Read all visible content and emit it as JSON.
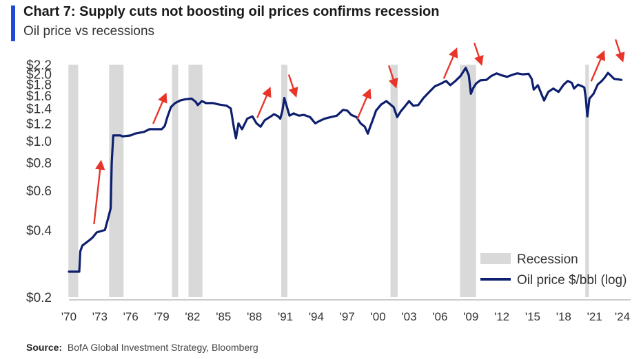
{
  "title": "Chart 7: Supply cuts not boosting oil prices confirms recession",
  "subtitle": "Oil price vs recessions",
  "source": {
    "label": "Source:",
    "text": "BofA Global Investment Strategy, Bloomberg"
  },
  "colors": {
    "accent": "#1f4bd8",
    "line": "#0d1f6e",
    "recession": "#d9d9d9",
    "arrow": "#e8352a"
  },
  "chart_data": {
    "type": "line",
    "title": "Chart 7: Supply cuts not boosting oil prices confirms recession",
    "subtitle": "Oil price vs recessions",
    "xlabel": "",
    "ylabel": "",
    "y_scale": "log10 of oil price $/bbl",
    "xlim": [
      1970,
      2024.5
    ],
    "ylim": [
      0.2,
      2.2
    ],
    "y_ticks": [
      "$0.2",
      "$0.4",
      "$0.6",
      "$0.8",
      "$1.0",
      "$1.2",
      "$1.4",
      "$1.6",
      "$1.8",
      "$2.0",
      "$2.2"
    ],
    "y_tick_values": [
      0.2,
      0.4,
      0.6,
      0.8,
      1.0,
      1.2,
      1.4,
      1.6,
      1.8,
      2.0,
      2.2
    ],
    "x_ticks": [
      "'70",
      "'73",
      "'76",
      "'79",
      "'82",
      "'85",
      "'88",
      "'91",
      "'94",
      "'97",
      "'00",
      "'03",
      "'06",
      "'09",
      "'12",
      "'15",
      "'18",
      "'21",
      "'24"
    ],
    "x_tick_values": [
      1970,
      1973,
      1976,
      1979,
      1982,
      1985,
      1988,
      1991,
      1994,
      1997,
      2000,
      2003,
      2006,
      2009,
      2012,
      2015,
      2018,
      2021,
      2024
    ],
    "grid": false,
    "legend": {
      "position": "bottom-right",
      "items": [
        {
          "label": "Recession",
          "kind": "band"
        },
        {
          "label": "Oil price $/bbl (log)",
          "kind": "line"
        }
      ]
    },
    "recessions": [
      [
        1969.95,
        1970.9
      ],
      [
        1973.9,
        1975.3
      ],
      [
        1980.0,
        1980.6
      ],
      [
        1981.6,
        1982.95
      ],
      [
        1990.6,
        1991.2
      ],
      [
        2001.2,
        2001.9
      ],
      [
        2007.95,
        2009.5
      ],
      [
        2020.1,
        2020.45
      ]
    ],
    "series": [
      {
        "name": "Oil price $/bbl (log)",
        "points": [
          [
            1970.0,
            0.26
          ],
          [
            1971.0,
            0.26
          ],
          [
            1971.1,
            0.32
          ],
          [
            1971.3,
            0.34
          ],
          [
            1972.0,
            0.36
          ],
          [
            1972.3,
            0.37
          ],
          [
            1972.7,
            0.39
          ],
          [
            1973.5,
            0.4
          ],
          [
            1973.8,
            0.45
          ],
          [
            1974.05,
            0.5
          ],
          [
            1974.15,
            0.8
          ],
          [
            1974.3,
            1.06
          ],
          [
            1975.0,
            1.06
          ],
          [
            1975.2,
            1.05
          ],
          [
            1976.0,
            1.06
          ],
          [
            1976.4,
            1.08
          ],
          [
            1977.3,
            1.1
          ],
          [
            1977.8,
            1.13
          ],
          [
            1978.6,
            1.13
          ],
          [
            1979.0,
            1.13
          ],
          [
            1979.3,
            1.17
          ],
          [
            1979.55,
            1.28
          ],
          [
            1979.9,
            1.42
          ],
          [
            1980.3,
            1.48
          ],
          [
            1980.8,
            1.52
          ],
          [
            1981.3,
            1.54
          ],
          [
            1981.9,
            1.55
          ],
          [
            1982.3,
            1.5
          ],
          [
            1982.5,
            1.45
          ],
          [
            1982.9,
            1.51
          ],
          [
            1983.3,
            1.48
          ],
          [
            1984.0,
            1.48
          ],
          [
            1984.5,
            1.46
          ],
          [
            1985.3,
            1.44
          ],
          [
            1985.7,
            1.4
          ],
          [
            1986.0,
            1.15
          ],
          [
            1986.2,
            1.03
          ],
          [
            1986.45,
            1.2
          ],
          [
            1986.8,
            1.13
          ],
          [
            1987.3,
            1.26
          ],
          [
            1987.8,
            1.29
          ],
          [
            1988.2,
            1.2
          ],
          [
            1988.6,
            1.16
          ],
          [
            1989.0,
            1.24
          ],
          [
            1989.6,
            1.29
          ],
          [
            1989.9,
            1.32
          ],
          [
            1990.3,
            1.29
          ],
          [
            1990.5,
            1.26
          ],
          [
            1990.7,
            1.36
          ],
          [
            1990.9,
            1.56
          ],
          [
            1991.1,
            1.45
          ],
          [
            1991.4,
            1.3
          ],
          [
            1991.8,
            1.33
          ],
          [
            1992.3,
            1.3
          ],
          [
            1992.8,
            1.31
          ],
          [
            1993.4,
            1.28
          ],
          [
            1993.9,
            1.2
          ],
          [
            1994.3,
            1.23
          ],
          [
            1994.8,
            1.26
          ],
          [
            1995.4,
            1.28
          ],
          [
            1996.0,
            1.3
          ],
          [
            1996.6,
            1.38
          ],
          [
            1997.0,
            1.37
          ],
          [
            1997.4,
            1.31
          ],
          [
            1997.9,
            1.28
          ],
          [
            1998.3,
            1.2
          ],
          [
            1998.7,
            1.16
          ],
          [
            1999.0,
            1.08
          ],
          [
            1999.2,
            1.15
          ],
          [
            1999.5,
            1.25
          ],
          [
            1999.8,
            1.37
          ],
          [
            2000.3,
            1.46
          ],
          [
            2000.8,
            1.51
          ],
          [
            2001.1,
            1.47
          ],
          [
            2001.5,
            1.42
          ],
          [
            2001.85,
            1.28
          ],
          [
            2002.2,
            1.36
          ],
          [
            2002.6,
            1.43
          ],
          [
            2003.0,
            1.51
          ],
          [
            2003.4,
            1.44
          ],
          [
            2003.9,
            1.45
          ],
          [
            2004.4,
            1.56
          ],
          [
            2004.9,
            1.65
          ],
          [
            2005.5,
            1.76
          ],
          [
            2006.0,
            1.8
          ],
          [
            2006.6,
            1.86
          ],
          [
            2007.0,
            1.78
          ],
          [
            2007.5,
            1.86
          ],
          [
            2008.0,
            1.96
          ],
          [
            2008.5,
            2.13
          ],
          [
            2008.8,
            1.97
          ],
          [
            2009.0,
            1.63
          ],
          [
            2009.2,
            1.72
          ],
          [
            2009.5,
            1.81
          ],
          [
            2009.9,
            1.87
          ],
          [
            2010.5,
            1.88
          ],
          [
            2011.0,
            1.96
          ],
          [
            2011.5,
            2.01
          ],
          [
            2012.0,
            1.97
          ],
          [
            2012.5,
            1.94
          ],
          [
            2013.0,
            1.98
          ],
          [
            2013.5,
            2.01
          ],
          [
            2014.0,
            1.99
          ],
          [
            2014.6,
            2.0
          ],
          [
            2014.9,
            1.9
          ],
          [
            2015.1,
            1.7
          ],
          [
            2015.5,
            1.78
          ],
          [
            2015.9,
            1.6
          ],
          [
            2016.1,
            1.52
          ],
          [
            2016.5,
            1.66
          ],
          [
            2017.0,
            1.72
          ],
          [
            2017.5,
            1.66
          ],
          [
            2018.0,
            1.79
          ],
          [
            2018.4,
            1.86
          ],
          [
            2018.8,
            1.82
          ],
          [
            2019.0,
            1.72
          ],
          [
            2019.4,
            1.79
          ],
          [
            2019.8,
            1.76
          ],
          [
            2020.0,
            1.74
          ],
          [
            2020.15,
            1.56
          ],
          [
            2020.3,
            1.29
          ],
          [
            2020.5,
            1.55
          ],
          [
            2020.9,
            1.63
          ],
          [
            2021.3,
            1.79
          ],
          [
            2021.7,
            1.86
          ],
          [
            2022.0,
            1.93
          ],
          [
            2022.3,
            2.02
          ],
          [
            2022.6,
            1.96
          ],
          [
            2022.9,
            1.9
          ],
          [
            2023.3,
            1.89
          ],
          [
            2023.6,
            1.88
          ]
        ]
      }
    ],
    "annotations": [
      {
        "type": "arrow",
        "direction": "up",
        "near_year": 1972.7
      },
      {
        "type": "arrow",
        "direction": "up",
        "near_year": 1978.7
      },
      {
        "type": "arrow",
        "direction": "up",
        "near_year": 1988.8
      },
      {
        "type": "arrow",
        "direction": "down",
        "near_year": 1991.6
      },
      {
        "type": "arrow",
        "direction": "up",
        "near_year": 1998.5
      },
      {
        "type": "arrow",
        "direction": "down",
        "near_year": 2001.3
      },
      {
        "type": "arrow",
        "direction": "up",
        "near_year": 2006.9
      },
      {
        "type": "arrow",
        "direction": "down",
        "near_year": 2009.6
      },
      {
        "type": "arrow",
        "direction": "up",
        "near_year": 2021.2
      },
      {
        "type": "arrow",
        "direction": "down",
        "near_year": 2023.3
      }
    ]
  }
}
